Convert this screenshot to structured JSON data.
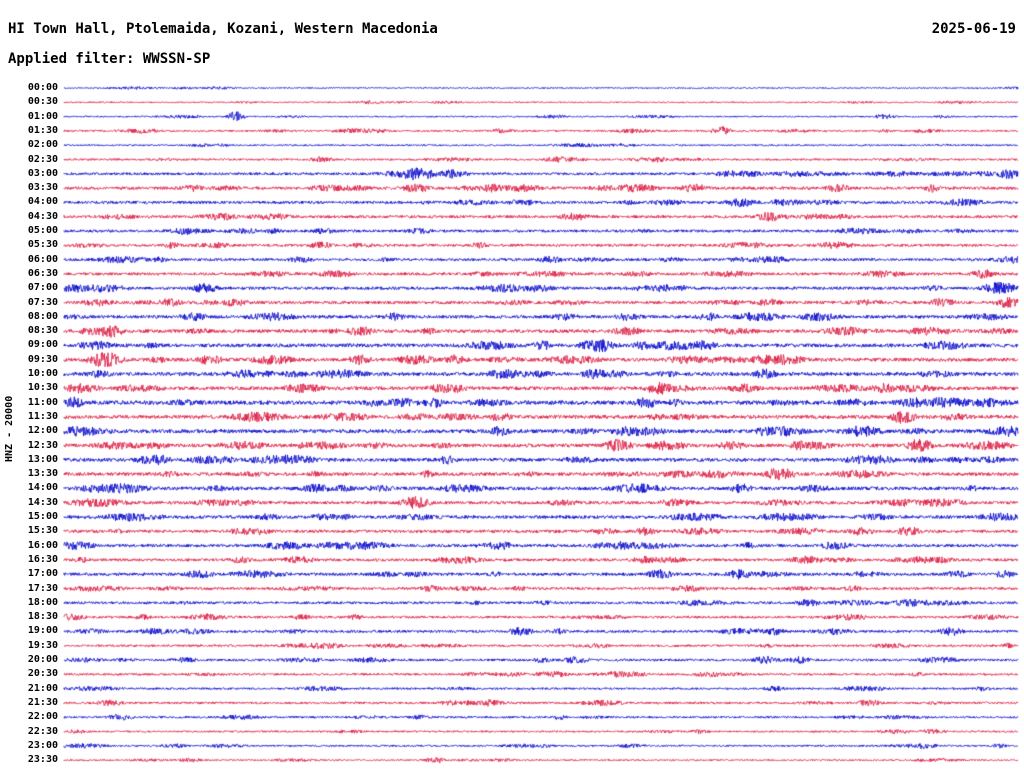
{
  "header": {
    "station_title": "HI Town Hall, Ptolemaida, Kozani, Western Macedonia",
    "date": "2025-06-19",
    "filter_label": "Applied filter: WWSSN-SP"
  },
  "axis": {
    "y_label": "HNZ - 20000"
  },
  "colors": {
    "blue": "#0000cc",
    "red": "#dc143c",
    "text": "#000000",
    "background": "#ffffff"
  },
  "chart_data": {
    "type": "line",
    "subtype": "seismogram-helicorder",
    "title": "HI Town Hall, Ptolemaida, Kozani, Western Macedonia",
    "date": "2025-06-19",
    "filter": "WWSSN-SP",
    "channel_scale_label": "HNZ - 20000",
    "row_duration_minutes": 30,
    "rows_start": "00:00",
    "rows_end": "23:30",
    "legend_position": "none",
    "grid": false,
    "amplitude_note": "amp = relative background noise amplitude per row (px); events = transient bursts, t = fractional position within the 30-minute row, mag = amplitude multiplier",
    "rows": [
      {
        "time": "00:00",
        "color": "blue",
        "amp": 0.6,
        "events": []
      },
      {
        "time": "00:30",
        "color": "red",
        "amp": 0.7,
        "events": []
      },
      {
        "time": "01:00",
        "color": "blue",
        "amp": 0.7,
        "events": [
          {
            "t": 0.18,
            "mag": 8,
            "w": 6
          },
          {
            "t": 0.86,
            "mag": 4,
            "w": 8
          }
        ]
      },
      {
        "time": "01:30",
        "color": "red",
        "amp": 0.9,
        "events": [
          {
            "t": 0.46,
            "mag": 3,
            "w": 10
          },
          {
            "t": 0.69,
            "mag": 5,
            "w": 8
          }
        ]
      },
      {
        "time": "02:00",
        "color": "blue",
        "amp": 0.8,
        "events": []
      },
      {
        "time": "02:30",
        "color": "red",
        "amp": 1.0,
        "events": [
          {
            "t": 0.27,
            "mag": 3,
            "w": 10
          },
          {
            "t": 0.52,
            "mag": 3.5,
            "w": 12
          },
          {
            "t": 0.62,
            "mag": 3,
            "w": 10
          }
        ]
      },
      {
        "time": "03:00",
        "color": "blue",
        "amp": 1.3,
        "events": [
          {
            "t": 0.37,
            "mag": 5,
            "w": 16
          },
          {
            "t": 0.41,
            "mag": 4,
            "w": 10
          },
          {
            "t": 0.99,
            "mag": 4,
            "w": 10
          }
        ]
      },
      {
        "time": "03:30",
        "color": "red",
        "amp": 1.5,
        "events": [
          {
            "t": 0.37,
            "mag": 3,
            "w": 12
          },
          {
            "t": 0.45,
            "mag": 3,
            "w": 10
          },
          {
            "t": 0.66,
            "mag": 3,
            "w": 12
          },
          {
            "t": 0.81,
            "mag": 3,
            "w": 10
          }
        ]
      },
      {
        "time": "04:00",
        "color": "blue",
        "amp": 1.4,
        "events": [
          {
            "t": 0.48,
            "mag": 2.5,
            "w": 12
          },
          {
            "t": 0.71,
            "mag": 3.5,
            "w": 12
          }
        ]
      },
      {
        "time": "04:30",
        "color": "red",
        "amp": 1.4,
        "events": [
          {
            "t": 0.535,
            "mag": 3,
            "w": 12
          },
          {
            "t": 0.74,
            "mag": 3.5,
            "w": 12
          }
        ]
      },
      {
        "time": "05:00",
        "color": "blue",
        "amp": 1.3,
        "events": [
          {
            "t": 0.127,
            "mag": 3,
            "w": 10
          },
          {
            "t": 0.373,
            "mag": 2.5,
            "w": 12
          }
        ]
      },
      {
        "time": "05:30",
        "color": "red",
        "amp": 1.3,
        "events": [
          {
            "t": 0.27,
            "mag": 3,
            "w": 10
          },
          {
            "t": 0.71,
            "mag": 2.5,
            "w": 12
          }
        ]
      },
      {
        "time": "06:00",
        "color": "blue",
        "amp": 1.3,
        "events": [
          {
            "t": 0.247,
            "mag": 2.5,
            "w": 12
          }
        ]
      },
      {
        "time": "06:30",
        "color": "red",
        "amp": 1.4,
        "events": [
          {
            "t": 0.965,
            "mag": 4,
            "w": 10
          }
        ]
      },
      {
        "time": "07:00",
        "color": "blue",
        "amp": 1.5,
        "events": [
          {
            "t": 0.148,
            "mag": 3.5,
            "w": 10
          },
          {
            "t": 0.98,
            "mag": 5,
            "w": 12
          }
        ]
      },
      {
        "time": "07:30",
        "color": "red",
        "amp": 1.5,
        "events": [
          {
            "t": 0.111,
            "mag": 3,
            "w": 10
          },
          {
            "t": 0.99,
            "mag": 4,
            "w": 10
          }
        ]
      },
      {
        "time": "08:00",
        "color": "blue",
        "amp": 1.6,
        "events": [
          {
            "t": 0.221,
            "mag": 3,
            "w": 10
          },
          {
            "t": 0.59,
            "mag": 2.5,
            "w": 12
          }
        ]
      },
      {
        "time": "08:30",
        "color": "red",
        "amp": 1.7,
        "events": [
          {
            "t": 0.048,
            "mag": 4,
            "w": 10
          },
          {
            "t": 0.31,
            "mag": 3,
            "w": 12
          }
        ]
      },
      {
        "time": "09:00",
        "color": "blue",
        "amp": 1.8,
        "events": [
          {
            "t": 0.56,
            "mag": 4,
            "w": 14
          },
          {
            "t": 0.67,
            "mag": 3,
            "w": 10
          }
        ]
      },
      {
        "time": "09:30",
        "color": "red",
        "amp": 1.8,
        "events": [
          {
            "t": 0.043,
            "mag": 5,
            "w": 12
          },
          {
            "t": 0.153,
            "mag": 3,
            "w": 10
          },
          {
            "t": 0.31,
            "mag": 3,
            "w": 10
          },
          {
            "t": 0.41,
            "mag": 3,
            "w": 10
          }
        ]
      },
      {
        "time": "10:00",
        "color": "blue",
        "amp": 1.8,
        "events": [
          {
            "t": 0.556,
            "mag": 3,
            "w": 10
          },
          {
            "t": 0.735,
            "mag": 3,
            "w": 10
          }
        ]
      },
      {
        "time": "10:30",
        "color": "red",
        "amp": 1.8,
        "events": [
          {
            "t": 0.625,
            "mag": 3.5,
            "w": 12
          },
          {
            "t": 0.86,
            "mag": 3,
            "w": 10
          }
        ]
      },
      {
        "time": "11:00",
        "color": "blue",
        "amp": 2.0,
        "events": [
          {
            "t": 0.01,
            "mag": 3,
            "w": 8
          },
          {
            "t": 0.61,
            "mag": 3,
            "w": 10
          }
        ]
      },
      {
        "time": "11:30",
        "color": "red",
        "amp": 1.8,
        "events": [
          {
            "t": 0.88,
            "mag": 4,
            "w": 10
          }
        ]
      },
      {
        "time": "12:00",
        "color": "blue",
        "amp": 1.9,
        "events": [
          {
            "t": 0.845,
            "mag": 3,
            "w": 10
          }
        ]
      },
      {
        "time": "12:30",
        "color": "red",
        "amp": 1.8,
        "events": [
          {
            "t": 0.58,
            "mag": 3.5,
            "w": 12
          },
          {
            "t": 0.897,
            "mag": 4,
            "w": 10
          }
        ]
      },
      {
        "time": "13:00",
        "color": "blue",
        "amp": 1.8,
        "events": [
          {
            "t": 0.1,
            "mag": 3,
            "w": 10
          }
        ]
      },
      {
        "time": "13:30",
        "color": "red",
        "amp": 1.7,
        "events": [
          {
            "t": 0.75,
            "mag": 4,
            "w": 12
          }
        ]
      },
      {
        "time": "14:00",
        "color": "blue",
        "amp": 1.7,
        "events": [
          {
            "t": 0.71,
            "mag": 3,
            "w": 10
          }
        ]
      },
      {
        "time": "14:30",
        "color": "red",
        "amp": 1.6,
        "events": [
          {
            "t": 0.368,
            "mag": 4,
            "w": 12
          }
        ]
      },
      {
        "time": "15:00",
        "color": "blue",
        "amp": 1.6,
        "events": [
          {
            "t": 0.645,
            "mag": 2.5,
            "w": 10
          }
        ]
      },
      {
        "time": "15:30",
        "color": "red",
        "amp": 1.5,
        "events": [
          {
            "t": 0.886,
            "mag": 3.5,
            "w": 10
          }
        ]
      },
      {
        "time": "16:00",
        "color": "blue",
        "amp": 1.5,
        "events": [
          {
            "t": 0.457,
            "mag": 3,
            "w": 12
          }
        ]
      },
      {
        "time": "16:30",
        "color": "red",
        "amp": 1.4,
        "events": [
          {
            "t": 0.184,
            "mag": 2.5,
            "w": 10
          }
        ]
      },
      {
        "time": "17:00",
        "color": "blue",
        "amp": 1.5,
        "events": [
          {
            "t": 0.625,
            "mag": 3.5,
            "w": 10
          },
          {
            "t": 0.708,
            "mag": 3.5,
            "w": 10
          }
        ]
      },
      {
        "time": "17:30",
        "color": "red",
        "amp": 1.3,
        "events": [
          {
            "t": 0.384,
            "mag": 2.5,
            "w": 10
          }
        ]
      },
      {
        "time": "18:00",
        "color": "blue",
        "amp": 1.3,
        "events": [
          {
            "t": 0.78,
            "mag": 3,
            "w": 10
          }
        ]
      },
      {
        "time": "18:30",
        "color": "red",
        "amp": 1.2,
        "events": [
          {
            "t": 0.247,
            "mag": 2.5,
            "w": 10
          }
        ]
      },
      {
        "time": "19:00",
        "color": "blue",
        "amp": 1.3,
        "events": [
          {
            "t": 0.478,
            "mag": 3.5,
            "w": 10
          },
          {
            "t": 0.745,
            "mag": 3,
            "w": 10
          },
          {
            "t": 0.93,
            "mag": 3.5,
            "w": 10
          }
        ]
      },
      {
        "time": "19:30",
        "color": "red",
        "amp": 1.1,
        "events": [
          {
            "t": 0.56,
            "mag": 2.5,
            "w": 10
          }
        ]
      },
      {
        "time": "20:00",
        "color": "blue",
        "amp": 1.2,
        "events": [
          {
            "t": 0.536,
            "mag": 3.5,
            "w": 10
          },
          {
            "t": 0.735,
            "mag": 3.5,
            "w": 10
          },
          {
            "t": 0.77,
            "mag": 3,
            "w": 10
          }
        ]
      },
      {
        "time": "20:30",
        "color": "red",
        "amp": 1.1,
        "events": [
          {
            "t": 0.515,
            "mag": 3,
            "w": 10
          }
        ]
      },
      {
        "time": "21:00",
        "color": "blue",
        "amp": 1.0,
        "events": [
          {
            "t": 0.84,
            "mag": 2.5,
            "w": 10
          }
        ]
      },
      {
        "time": "21:30",
        "color": "red",
        "amp": 1.1,
        "events": [
          {
            "t": 0.447,
            "mag": 3.5,
            "w": 10
          },
          {
            "t": 0.845,
            "mag": 3,
            "w": 10
          }
        ]
      },
      {
        "time": "22:00",
        "color": "blue",
        "amp": 1.0,
        "events": [
          {
            "t": 0.059,
            "mag": 3.5,
            "w": 10
          },
          {
            "t": 0.373,
            "mag": 2.5,
            "w": 10
          }
        ]
      },
      {
        "time": "22:30",
        "color": "red",
        "amp": 0.9,
        "events": [
          {
            "t": 0.667,
            "mag": 2.5,
            "w": 10
          }
        ]
      },
      {
        "time": "23:00",
        "color": "blue",
        "amp": 0.9,
        "events": [
          {
            "t": 0.902,
            "mag": 4,
            "w": 10
          }
        ]
      },
      {
        "time": "23:30",
        "color": "red",
        "amp": 0.8,
        "events": [
          {
            "t": 0.389,
            "mag": 4,
            "w": 8
          }
        ]
      }
    ]
  }
}
